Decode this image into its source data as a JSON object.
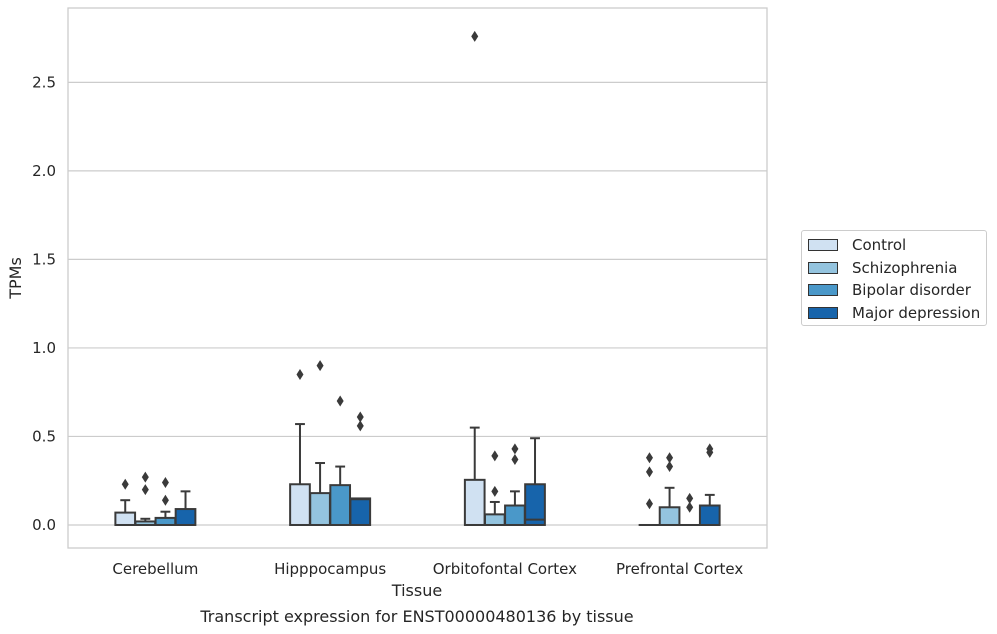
{
  "chart_data": {
    "type": "boxplot",
    "title": "",
    "caption": "Transcript expression for ENST00000480136 by tissue",
    "xlabel": "Tissue",
    "ylabel": "TPMs",
    "ylim": [
      -0.13,
      2.92
    ],
    "yticks": [
      "0.0",
      "0.5",
      "1.0",
      "1.5",
      "2.0",
      "2.5"
    ],
    "ytick_values": [
      0,
      0.5,
      1.0,
      1.5,
      2.0,
      2.5
    ],
    "grid": true,
    "legend_position": "right",
    "categories": [
      "Cerebellum",
      "Hipppocampus",
      "Orbitofontal Cortex",
      "Prefrontal Cortex"
    ],
    "series": [
      {
        "name": "Control",
        "color": "#d0e1f2",
        "boxes": [
          {
            "min": 0.0,
            "q1": 0.0,
            "median": 0.0,
            "q3": 0.07,
            "max": 0.14,
            "outliers": [
              0.23
            ]
          },
          {
            "min": 0.0,
            "q1": 0.0,
            "median": 0.0,
            "q3": 0.23,
            "max": 0.57,
            "outliers": [
              0.85
            ]
          },
          {
            "min": 0.0,
            "q1": 0.0,
            "median": 0.0,
            "q3": 0.255,
            "max": 0.55,
            "outliers": [
              2.76
            ]
          },
          {
            "min": 0.0,
            "q1": 0.0,
            "median": 0.0,
            "q3": 0.0,
            "max": 0.0,
            "outliers": [
              0.12,
              0.3,
              0.38
            ]
          }
        ]
      },
      {
        "name": "Schizophrenia",
        "color": "#94c4df",
        "boxes": [
          {
            "min": 0.0,
            "q1": 0.0,
            "median": 0.0,
            "q3": 0.02,
            "max": 0.035,
            "outliers": [
              0.2,
              0.27
            ]
          },
          {
            "min": 0.0,
            "q1": 0.0,
            "median": 0.0,
            "q3": 0.18,
            "max": 0.35,
            "outliers": [
              0.9
            ]
          },
          {
            "min": 0.0,
            "q1": 0.0,
            "median": 0.0,
            "q3": 0.06,
            "max": 0.13,
            "outliers": [
              0.19,
              0.39
            ]
          },
          {
            "min": 0.0,
            "q1": 0.0,
            "median": 0.0,
            "q3": 0.1,
            "max": 0.21,
            "outliers": [
              0.33,
              0.38
            ]
          }
        ]
      },
      {
        "name": "Bipolar disorder",
        "color": "#4a98c9",
        "boxes": [
          {
            "min": 0.0,
            "q1": 0.0,
            "median": 0.0,
            "q3": 0.04,
            "max": 0.075,
            "outliers": [
              0.14,
              0.24
            ]
          },
          {
            "min": 0.0,
            "q1": 0.0,
            "median": 0.0,
            "q3": 0.225,
            "max": 0.33,
            "outliers": [
              0.7
            ]
          },
          {
            "min": 0.0,
            "q1": 0.0,
            "median": 0.0,
            "q3": 0.11,
            "max": 0.19,
            "outliers": [
              0.37,
              0.43
            ]
          },
          {
            "min": 0.0,
            "q1": 0.0,
            "median": 0.0,
            "q3": 0.0,
            "max": 0.0,
            "outliers": [
              0.1,
              0.15
            ]
          }
        ]
      },
      {
        "name": "Major depression",
        "color": "#1764ab",
        "boxes": [
          {
            "min": 0.0,
            "q1": 0.0,
            "median": 0.0,
            "q3": 0.09,
            "max": 0.19,
            "outliers": []
          },
          {
            "min": 0.0,
            "q1": 0.0,
            "median": 0.145,
            "q3": 0.15,
            "max": 0.15,
            "outliers": [
              0.56,
              0.61
            ]
          },
          {
            "min": 0.0,
            "q1": 0.0,
            "median": 0.03,
            "q3": 0.23,
            "max": 0.49,
            "outliers": []
          },
          {
            "min": 0.0,
            "q1": 0.0,
            "median": 0.0,
            "q3": 0.11,
            "max": 0.17,
            "outliers": [
              0.41,
              0.43
            ]
          }
        ]
      }
    ]
  }
}
